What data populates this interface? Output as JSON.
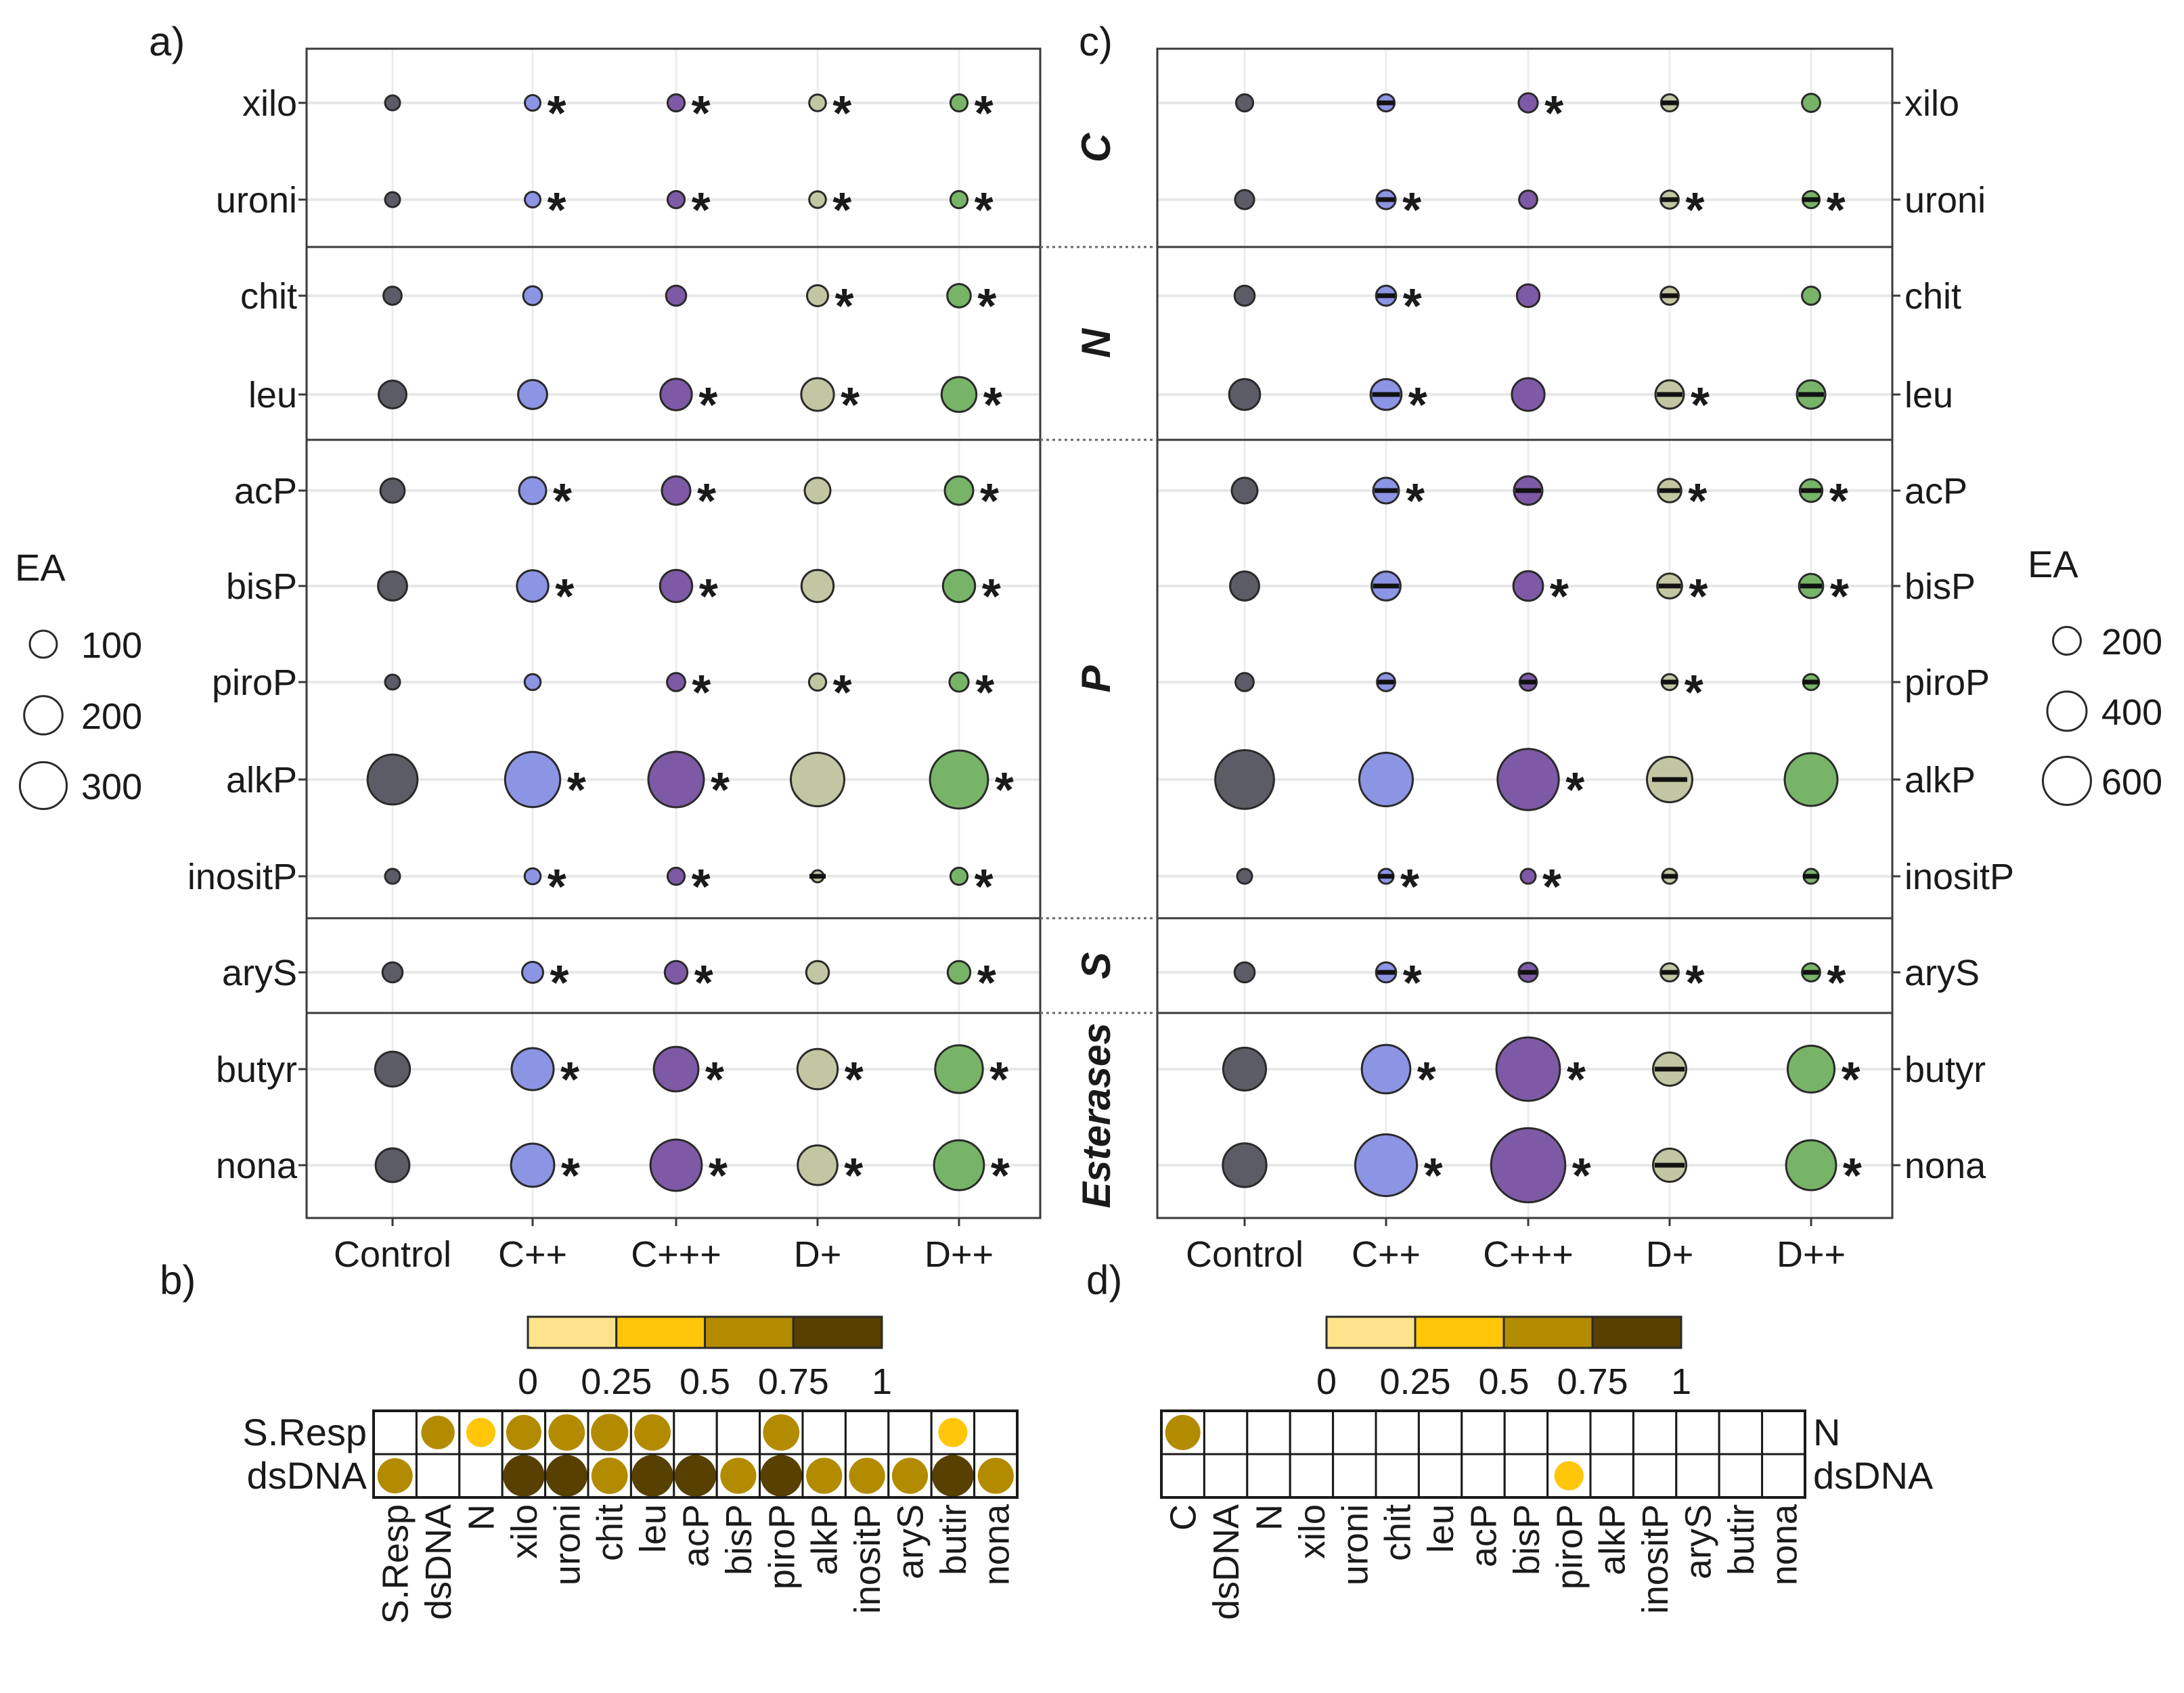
{
  "panel_labels": {
    "a": "a)",
    "b": "b)",
    "c": "c)",
    "d": "d)"
  },
  "treatments": [
    "Control",
    "C++",
    "C+++",
    "D+",
    "D++"
  ],
  "treatment_colors": [
    "#5c5c66",
    "#8c94e4",
    "#7e5aa6",
    "#c3c6a2",
    "#78b468"
  ],
  "enzymes": [
    "xilo",
    "uroni",
    "chit",
    "leu",
    "acP",
    "bisP",
    "piroP",
    "alkP",
    "inositP",
    "aryS",
    "butyr",
    "nona"
  ],
  "groups": [
    {
      "name": "C",
      "rows": [
        0,
        1
      ]
    },
    {
      "name": "N",
      "rows": [
        2,
        3
      ]
    },
    {
      "name": "P",
      "rows": [
        4,
        5,
        6,
        7,
        8
      ]
    },
    {
      "name": "S",
      "rows": [
        9
      ]
    },
    {
      "name": "Esterases",
      "rows": [
        10,
        11
      ]
    }
  ],
  "star_symbol": "*",
  "legend_a": {
    "title": "EA",
    "labels": [
      "100",
      "200",
      "300"
    ],
    "values": [
      100,
      200,
      300
    ]
  },
  "legend_c": {
    "title": "EA",
    "labels": [
      "200",
      "400",
      "600"
    ],
    "values": [
      200,
      400,
      600
    ]
  },
  "colorbar": {
    "tick_labels": [
      "0",
      "0.25",
      "0.5",
      "0.75",
      "1"
    ],
    "colors": [
      "#ffe38c",
      "#ffc60a",
      "#b38b00",
      "#574000"
    ]
  },
  "chart_data": [
    {
      "id": "a",
      "type": "scatter",
      "title": "",
      "xlabel": "",
      "ylabel": "",
      "x": [
        "Control",
        "C++",
        "C+++",
        "D+",
        "D++"
      ],
      "y": [
        "xilo",
        "uroni",
        "chit",
        "leu",
        "acP",
        "bisP",
        "piroP",
        "alkP",
        "inositP",
        "aryS",
        "butyr",
        "nona"
      ],
      "size_legend": {
        "title": "EA",
        "values": [
          100,
          200,
          300
        ]
      },
      "values": [
        [
          30,
          33,
          40,
          38,
          40
        ],
        [
          30,
          33,
          40,
          38,
          40
        ],
        [
          45,
          48,
          55,
          60,
          75
        ],
        [
          105,
          115,
          135,
          145,
          165
        ],
        [
          80,
          100,
          110,
          90,
          110
        ],
        [
          115,
          135,
          140,
          140,
          140
        ],
        [
          30,
          35,
          45,
          40,
          50
        ],
        [
          340,
          415,
          420,
          390,
          460
        ],
        [
          30,
          35,
          40,
          20,
          40
        ],
        [
          55,
          60,
          70,
          70,
          70
        ],
        [
          165,
          240,
          270,
          220,
          310
        ],
        [
          155,
          255,
          360,
          215,
          340
        ]
      ],
      "significant": [
        [
          0,
          1,
          1,
          1,
          1
        ],
        [
          0,
          1,
          1,
          1,
          1
        ],
        [
          0,
          0,
          0,
          1,
          1
        ],
        [
          0,
          0,
          1,
          1,
          1
        ],
        [
          0,
          1,
          1,
          0,
          1
        ],
        [
          0,
          1,
          1,
          0,
          1
        ],
        [
          0,
          0,
          1,
          1,
          1
        ],
        [
          0,
          1,
          1,
          0,
          1
        ],
        [
          0,
          1,
          1,
          0,
          1
        ],
        [
          0,
          1,
          1,
          0,
          1
        ],
        [
          0,
          1,
          1,
          1,
          1
        ],
        [
          0,
          1,
          1,
          1,
          1
        ]
      ],
      "dash": [
        [
          0,
          0,
          0,
          0,
          0
        ],
        [
          0,
          0,
          0,
          0,
          0
        ],
        [
          0,
          0,
          0,
          0,
          0
        ],
        [
          0,
          0,
          0,
          0,
          0
        ],
        [
          0,
          0,
          0,
          0,
          0
        ],
        [
          0,
          0,
          0,
          0,
          0
        ],
        [
          0,
          0,
          0,
          0,
          0
        ],
        [
          0,
          0,
          0,
          0,
          0
        ],
        [
          0,
          0,
          0,
          1,
          0
        ],
        [
          0,
          0,
          0,
          0,
          0
        ],
        [
          0,
          0,
          0,
          0,
          0
        ],
        [
          0,
          0,
          0,
          0,
          0
        ]
      ]
    },
    {
      "id": "c",
      "type": "scatter",
      "title": "",
      "xlabel": "",
      "ylabel": "",
      "x": [
        "Control",
        "C++",
        "C+++",
        "D+",
        "D++"
      ],
      "y": [
        "xilo",
        "uroni",
        "chit",
        "leu",
        "acP",
        "bisP",
        "piroP",
        "alkP",
        "inositP",
        "aryS",
        "butyr",
        "nona"
      ],
      "size_legend": {
        "title": "EA",
        "values": [
          200,
          400,
          600
        ]
      },
      "values": [
        [
          40,
          40,
          50,
          40,
          45
        ],
        [
          50,
          50,
          45,
          45,
          40
        ],
        [
          55,
          55,
          70,
          45,
          45
        ],
        [
          130,
          130,
          145,
          110,
          110
        ],
        [
          90,
          90,
          110,
          75,
          70
        ],
        [
          115,
          115,
          120,
          85,
          80
        ],
        [
          45,
          45,
          40,
          35,
          35
        ],
        [
          470,
          390,
          510,
          280,
          380
        ],
        [
          30,
          30,
          30,
          30,
          30
        ],
        [
          55,
          55,
          50,
          45,
          45
        ],
        [
          250,
          320,
          550,
          150,
          300
        ],
        [
          260,
          520,
          750,
          150,
          340
        ]
      ],
      "significant": [
        [
          0,
          0,
          1,
          0,
          0
        ],
        [
          0,
          1,
          0,
          1,
          1
        ],
        [
          0,
          1,
          0,
          0,
          0
        ],
        [
          0,
          1,
          0,
          1,
          0
        ],
        [
          0,
          1,
          0,
          1,
          1
        ],
        [
          0,
          0,
          1,
          1,
          1
        ],
        [
          0,
          0,
          0,
          1,
          0
        ],
        [
          0,
          0,
          1,
          0,
          0
        ],
        [
          0,
          1,
          1,
          0,
          0
        ],
        [
          0,
          1,
          0,
          1,
          1
        ],
        [
          0,
          1,
          1,
          0,
          1
        ],
        [
          0,
          1,
          1,
          0,
          1
        ]
      ],
      "dash": [
        [
          0,
          1,
          0,
          1,
          0
        ],
        [
          0,
          1,
          0,
          1,
          1
        ],
        [
          0,
          1,
          0,
          1,
          0
        ],
        [
          0,
          1,
          0,
          1,
          1
        ],
        [
          0,
          1,
          1,
          1,
          1
        ],
        [
          0,
          1,
          0,
          1,
          1
        ],
        [
          0,
          1,
          1,
          1,
          1
        ],
        [
          0,
          0,
          0,
          1,
          0
        ],
        [
          0,
          1,
          0,
          1,
          1
        ],
        [
          0,
          1,
          1,
          1,
          1
        ],
        [
          0,
          0,
          0,
          1,
          0
        ],
        [
          0,
          0,
          0,
          1,
          0
        ]
      ]
    },
    {
      "id": "b",
      "type": "heatmap",
      "title": "",
      "rows": [
        "S.Resp",
        "dsDNA"
      ],
      "columns": [
        "S.Resp",
        "dsDNA",
        "N",
        "xilo",
        "uroni",
        "chit",
        "leu",
        "acP",
        "bisP",
        "piroP",
        "alkP",
        "inositP",
        "aryS",
        "butir",
        "nona"
      ],
      "color_scale": {
        "min": 0,
        "max": 1,
        "ticks": [
          0,
          0.25,
          0.5,
          0.75,
          1
        ]
      },
      "values": [
        [
          null,
          0.6,
          0.4,
          0.6,
          0.62,
          0.63,
          0.62,
          null,
          null,
          0.6,
          null,
          null,
          null,
          0.4,
          null
        ],
        [
          0.6,
          null,
          null,
          0.86,
          0.88,
          0.62,
          0.85,
          0.88,
          0.6,
          0.86,
          0.6,
          0.6,
          0.6,
          0.86,
          0.6
        ]
      ],
      "circle_size": [
        [
          null,
          0.78,
          0.68,
          0.82,
          0.85,
          0.87,
          0.85,
          null,
          null,
          0.85,
          null,
          null,
          null,
          0.68,
          null
        ],
        [
          0.82,
          null,
          null,
          0.97,
          0.97,
          0.85,
          0.97,
          0.97,
          0.84,
          0.97,
          0.84,
          0.84,
          0.84,
          0.97,
          0.84
        ]
      ]
    },
    {
      "id": "d",
      "type": "heatmap",
      "title": "",
      "rows": [
        "N",
        "dsDNA"
      ],
      "columns": [
        "C",
        "dsDNA",
        "N",
        "xilo",
        "uroni",
        "chit",
        "leu",
        "acP",
        "bisP",
        "piroP",
        "alkP",
        "inositP",
        "aryS",
        "butir",
        "nona"
      ],
      "color_scale": {
        "min": 0,
        "max": 1,
        "ticks": [
          0,
          0.25,
          0.5,
          0.75,
          1
        ]
      },
      "values": [
        [
          0.6,
          null,
          null,
          null,
          null,
          null,
          null,
          null,
          null,
          null,
          null,
          null,
          null,
          null,
          null
        ],
        [
          null,
          null,
          null,
          null,
          null,
          null,
          null,
          null,
          null,
          0.4,
          null,
          null,
          null,
          null,
          null
        ]
      ],
      "circle_size": [
        [
          0.82,
          null,
          null,
          null,
          null,
          null,
          null,
          null,
          null,
          null,
          null,
          null,
          null,
          null,
          null
        ],
        [
          null,
          null,
          null,
          null,
          null,
          null,
          null,
          null,
          null,
          0.68,
          null,
          null,
          null,
          null,
          null
        ]
      ]
    }
  ]
}
